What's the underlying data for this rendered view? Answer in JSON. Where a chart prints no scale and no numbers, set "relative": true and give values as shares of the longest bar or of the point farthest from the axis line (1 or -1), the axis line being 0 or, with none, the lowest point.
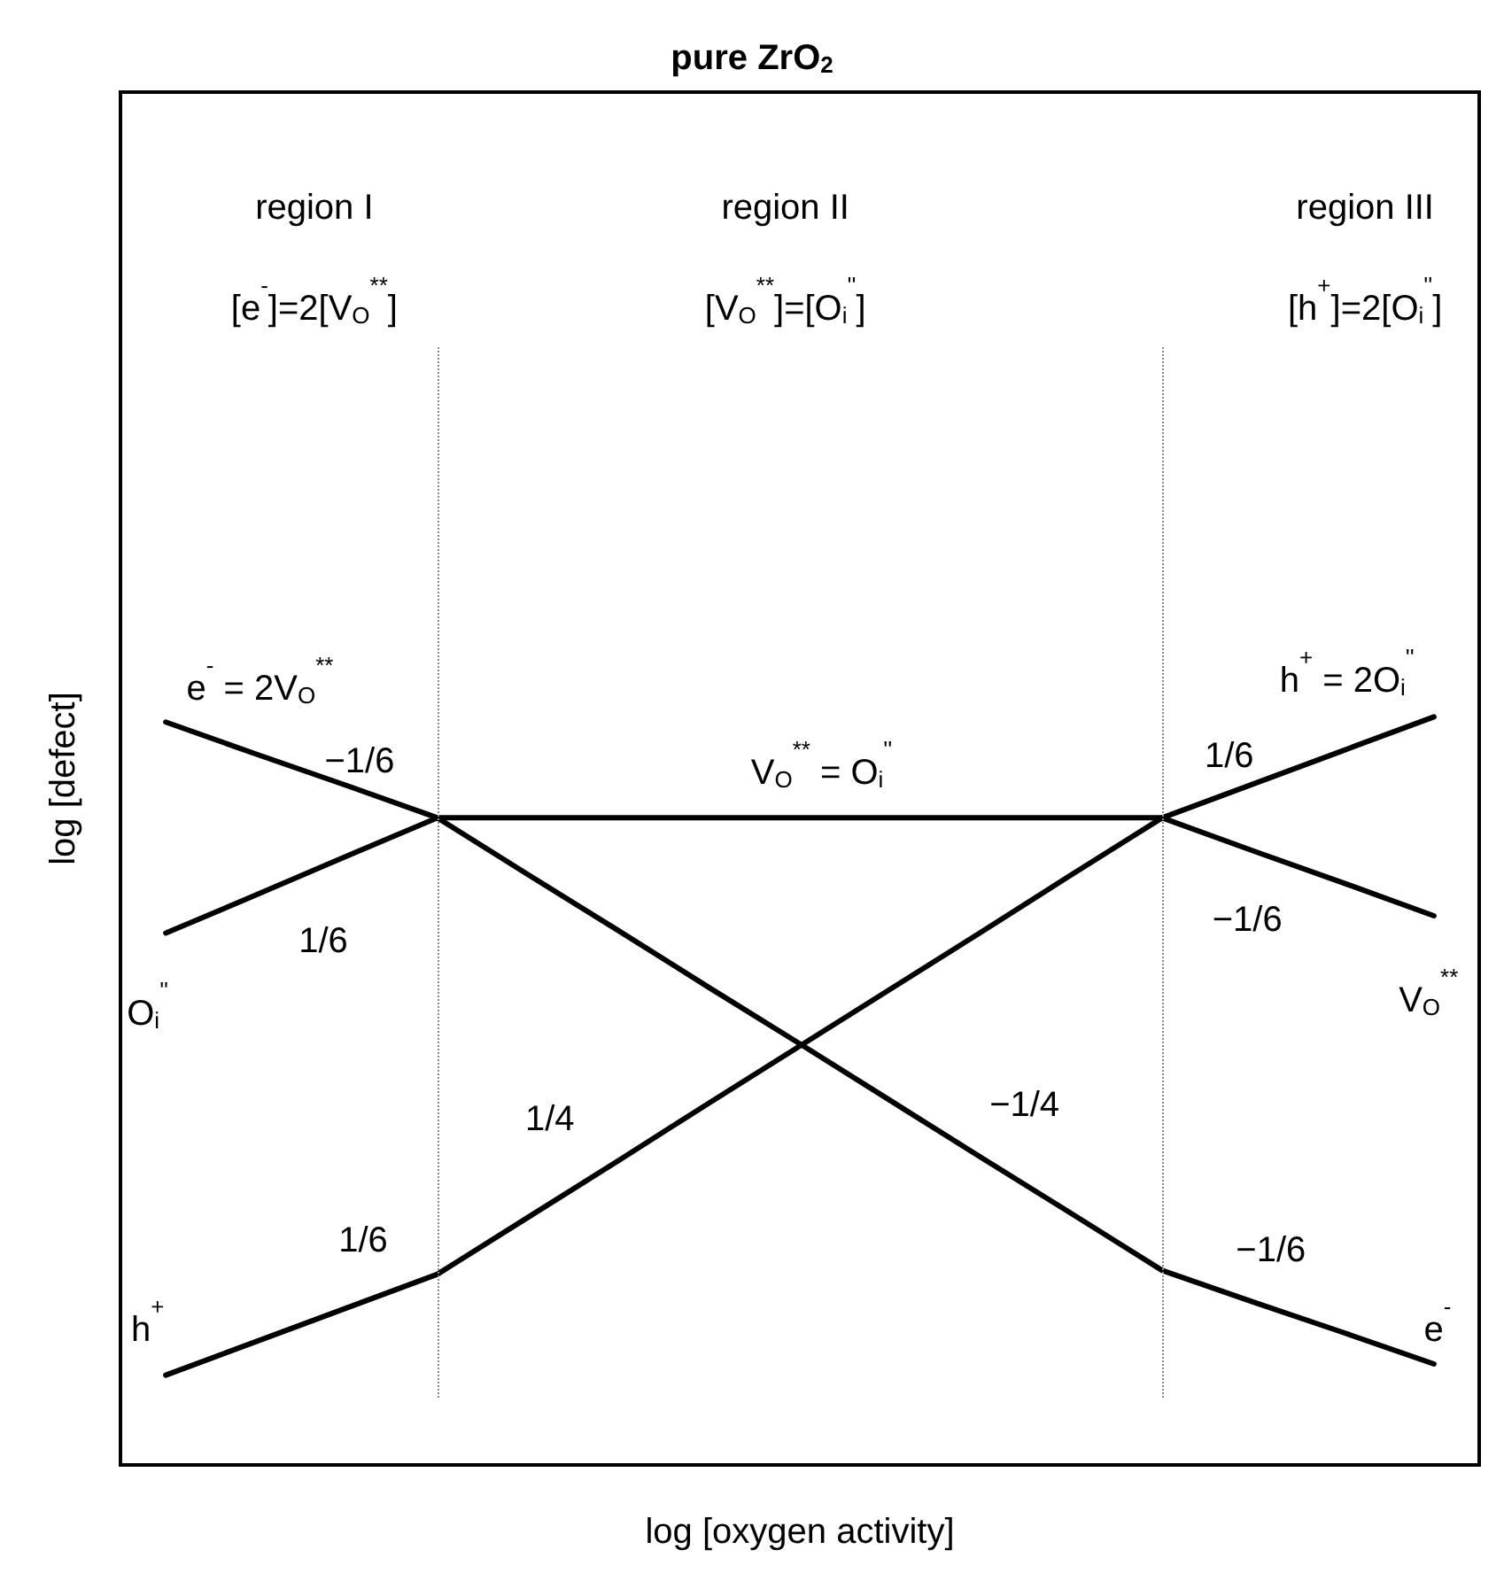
{
  "chart_data": {
    "type": "line",
    "relative": true,
    "title": "pure ZrO$_{2}$",
    "xlabel": "log [oxygen activity]",
    "ylabel": "log [defect]",
    "categories": [
      null,
      null,
      null,
      null,
      null,
      null,
      null,
      null,
      null,
      null,
      null,
      null,
      null,
      null,
      null
    ],
    "grid": false,
    "marker": "none",
    "line_style": "solid",
    "series": [
      {
        "color": "#000000",
        "values": [
          0.993,
          0.95,
          0.908,
          0.865,
          0.789,
          0.714,
          0.638,
          0.563,
          0.487,
          0.411,
          0.336,
          0.26,
          0.218,
          0.177,
          0.135
        ]
      },
      {
        "color": "#000000",
        "values": [
          0.12,
          0.165,
          0.21,
          0.255,
          0.331,
          0.407,
          0.484,
          0.56,
          0.636,
          0.712,
          0.789,
          0.865,
          0.91,
          0.955,
          1
        ]
      },
      {
        "color": "#000000",
        "values": [
          0.711,
          0.762,
          0.814,
          0.865,
          0.865,
          0.865,
          0.865,
          0.865,
          0.865,
          0.865,
          0.865,
          0.865,
          0.821,
          0.778,
          0.734
        ]
      }
    ],
    "ref_lines": [
      {
        "axis": "x",
        "color": "#888888",
        "line_style": "dotted"
      },
      {
        "axis": "x",
        "color": "#888888",
        "line_style": "dotted"
      }
    ],
    "annotations": [
      "region I",
      "region II",
      "region III",
      "[e$^{-}$]=2[V$_{O}$$^{**}$]",
      "[V$_{O}$$^{**}$]=[O$_{i}$$^{''}$]",
      "[h$^{+}$]=2[O$_{i}$$^{''}$]",
      "e$^{-}$ = 2V$_{O}$$^{**}$",
      "h$^{+}$ = 2O$_{i}$$^{''}$",
      "V$_{O}$$^{**}$ = O$_{i}$$^{''}$",
      "O$_{i}$$^{''}$",
      "h$^{+}$",
      "V$_{O}$$^{**}$",
      "e$^{-}$",
      "−1/6",
      "1/6",
      "1/4",
      "1/6",
      "−1/4",
      "1/6",
      "−1/6",
      "−1/6"
    ]
  }
}
